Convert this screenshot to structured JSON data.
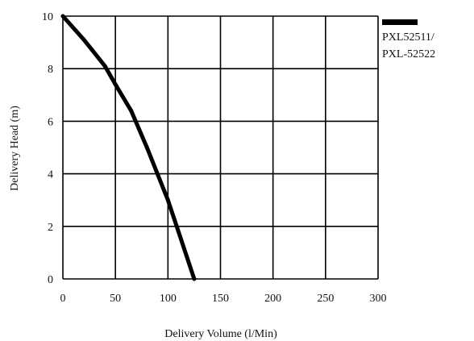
{
  "chart_data": {
    "type": "line",
    "xlabel": "Delivery Volume (l/Min)",
    "ylabel": "Delivery Head (m)",
    "xlim": [
      0,
      300
    ],
    "ylim": [
      0,
      10
    ],
    "x_ticks": [
      "0",
      "50",
      "100",
      "150",
      "200",
      "250",
      "300"
    ],
    "y_ticks": [
      "0",
      "2",
      "4",
      "6",
      "8",
      "10"
    ],
    "grid": true,
    "legend_position": "top-right-outside",
    "series": [
      {
        "name": "PXL52511/ PXL-52522",
        "legend_lines": [
          "PXL52511/",
          "PXL-52522"
        ],
        "color": "#000000",
        "x": [
          0,
          20,
          40,
          50,
          65,
          80,
          100,
          110,
          120,
          125
        ],
        "y": [
          10,
          9.1,
          8.1,
          7.4,
          6.4,
          5.0,
          3.0,
          1.8,
          0.6,
          0
        ]
      }
    ]
  }
}
